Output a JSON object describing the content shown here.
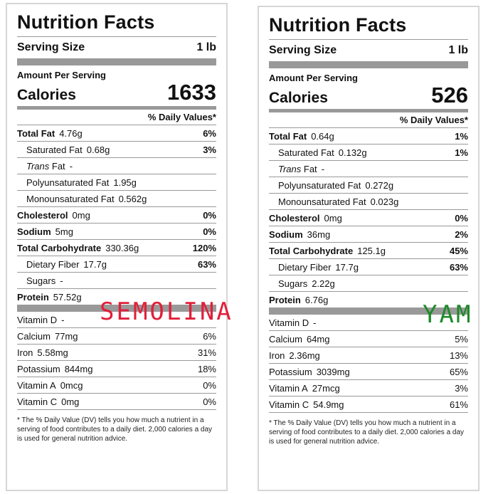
{
  "labels": {
    "left": {
      "title": "Nutrition Facts",
      "serving_size_label": "Serving Size",
      "serving_size_value": "1 lb",
      "amount_per_serving": "Amount Per Serving",
      "calories_label": "Calories",
      "calories_value": "1633",
      "daily_values_header": "% Daily Values*",
      "total_fat": {
        "label": "Total Fat",
        "amount": "4.76g",
        "dv": "6%"
      },
      "saturated_fat": {
        "label": "Saturated Fat",
        "amount": "0.68g",
        "dv": "3%"
      },
      "trans_fat": {
        "label_italic": "Trans",
        "label_rest": "Fat",
        "amount": "-"
      },
      "polyunsaturated_fat": {
        "label": "Polyunsaturated Fat",
        "amount": "1.95g"
      },
      "monounsaturated_fat": {
        "label": "Monounsaturated Fat",
        "amount": "0.562g"
      },
      "cholesterol": {
        "label": "Cholesterol",
        "amount": "0mg",
        "dv": "0%"
      },
      "sodium": {
        "label": "Sodium",
        "amount": "5mg",
        "dv": "0%"
      },
      "total_carbohydrate": {
        "label": "Total Carbohydrate",
        "amount": "330.36g",
        "dv": "120%"
      },
      "dietary_fiber": {
        "label": "Dietary Fiber",
        "amount": "17.7g",
        "dv": "63%"
      },
      "sugars": {
        "label": "Sugars",
        "amount": "-"
      },
      "protein": {
        "label": "Protein",
        "amount": "57.52g"
      },
      "vitamin_d": {
        "label": "Vitamin D",
        "amount": "-",
        "dv": ""
      },
      "calcium": {
        "label": "Calcium",
        "amount": "77mg",
        "dv": "6%"
      },
      "iron": {
        "label": "Iron",
        "amount": "5.58mg",
        "dv": "31%"
      },
      "potassium": {
        "label": "Potassium",
        "amount": "844mg",
        "dv": "18%"
      },
      "vitamin_a": {
        "label": "Vitamin A",
        "amount": "0mcg",
        "dv": "0%"
      },
      "vitamin_c": {
        "label": "Vitamin C",
        "amount": "0mg",
        "dv": "0%"
      },
      "footnote": "* The % Daily Value (DV) tells you how much a nutrient in a serving of food contributes to a daily diet. 2,000 calories a day is used for general nutrition advice.",
      "food_name": "SEMOLINA"
    },
    "right": {
      "title": "Nutrition Facts",
      "serving_size_label": "Serving Size",
      "serving_size_value": "1 lb",
      "amount_per_serving": "Amount Per Serving",
      "calories_label": "Calories",
      "calories_value": "526",
      "daily_values_header": "% Daily Values*",
      "total_fat": {
        "label": "Total Fat",
        "amount": "0.64g",
        "dv": "1%"
      },
      "saturated_fat": {
        "label": "Saturated Fat",
        "amount": "0.132g",
        "dv": "1%"
      },
      "trans_fat": {
        "label_italic": "Trans",
        "label_rest": "Fat",
        "amount": "-"
      },
      "polyunsaturated_fat": {
        "label": "Polyunsaturated Fat",
        "amount": "0.272g"
      },
      "monounsaturated_fat": {
        "label": "Monounsaturated Fat",
        "amount": "0.023g"
      },
      "cholesterol": {
        "label": "Cholesterol",
        "amount": "0mg",
        "dv": "0%"
      },
      "sodium": {
        "label": "Sodium",
        "amount": "36mg",
        "dv": "2%"
      },
      "total_carbohydrate": {
        "label": "Total Carbohydrate",
        "amount": "125.1g",
        "dv": "45%"
      },
      "dietary_fiber": {
        "label": "Dietary Fiber",
        "amount": "17.7g",
        "dv": "63%"
      },
      "sugars": {
        "label": "Sugars",
        "amount": "2.22g"
      },
      "protein": {
        "label": "Protein",
        "amount": "6.76g"
      },
      "vitamin_d": {
        "label": "Vitamin D",
        "amount": "-",
        "dv": ""
      },
      "calcium": {
        "label": "Calcium",
        "amount": "64mg",
        "dv": "5%"
      },
      "iron": {
        "label": "Iron",
        "amount": "2.36mg",
        "dv": "13%"
      },
      "potassium": {
        "label": "Potassium",
        "amount": "3039mg",
        "dv": "65%"
      },
      "vitamin_a": {
        "label": "Vitamin A",
        "amount": "27mcg",
        "dv": "3%"
      },
      "vitamin_c": {
        "label": "Vitamin C",
        "amount": "54.9mg",
        "dv": "61%"
      },
      "footnote": "* The % Daily Value (DV) tells you how much a nutrient in a serving of food contributes to a daily diet. 2,000 calories a day is used for general nutrition advice.",
      "food_name": "YAM"
    }
  },
  "colors": {
    "semolina_text": "#e0203a",
    "yam_text": "#1f8a2a",
    "rule_gray": "#999999",
    "border_gray": "#d6d6d6"
  }
}
